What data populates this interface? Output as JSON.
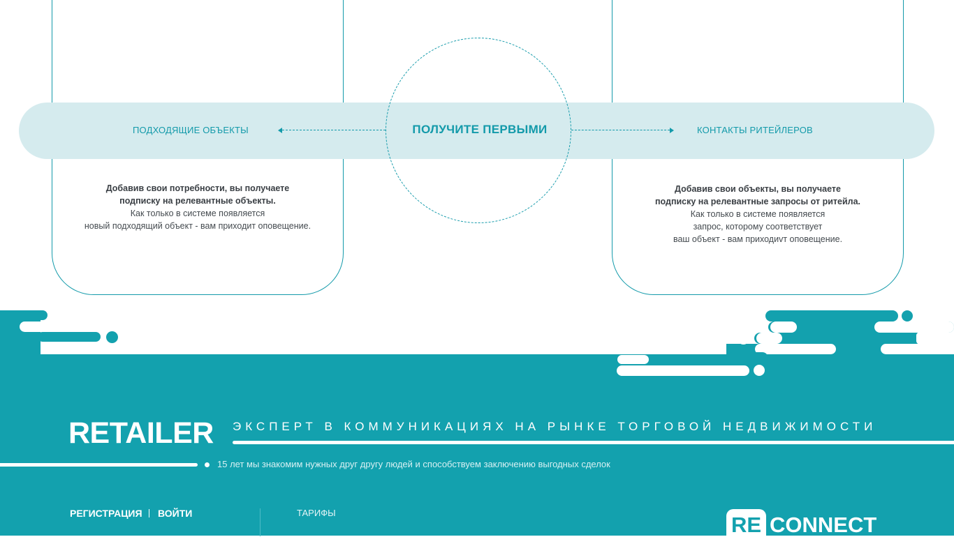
{
  "band": {
    "left_label": "ПОДХОДЯЩИЕ ОБЪЕКТЫ",
    "center_title": "ПОЛУЧИТЕ ПЕРВЫМИ",
    "right_label": "КОНТАКТЫ РИТЕЙЛЕРОВ"
  },
  "left_card": {
    "bold_line1": "Добавив свои потребности, вы получаете",
    "bold_line2": "подписку на релевантные объекты.",
    "line3": "Как только в системе появляется",
    "line4": "новый подходящий объект - вам приходит оповещение."
  },
  "right_card": {
    "bold_line1": "Добавив свои объекты, вы получаете",
    "bold_line2": "подписку на релевантные запросы от ритейла.",
    "line3": "Как только в системе появляется",
    "line4": "запрос, которому соответствует",
    "line5": "ваш объект - вам приходиvт оповещение."
  },
  "footer": {
    "logo": "RETAILER",
    "tagline": "ЭКСПЕРТ В КОММУНИКАЦИЯХ НА РЫНКЕ ТОРГОВОЙ НЕДВИЖИМОСТИ",
    "subtext": "15 лет мы знакомим нужных друг другу людей и способствуем заключению выгодных сделок",
    "nav_register": "РЕГИСТРАЦИЯ",
    "nav_login": "ВОЙТИ",
    "nav_tariffs": "ТАРИФЫ",
    "brand_box": "RE",
    "brand_word": "CONNECT"
  },
  "colors": {
    "accent": "#13a1ae",
    "band": "#d5ebee",
    "text_dark": "#444a4f"
  }
}
